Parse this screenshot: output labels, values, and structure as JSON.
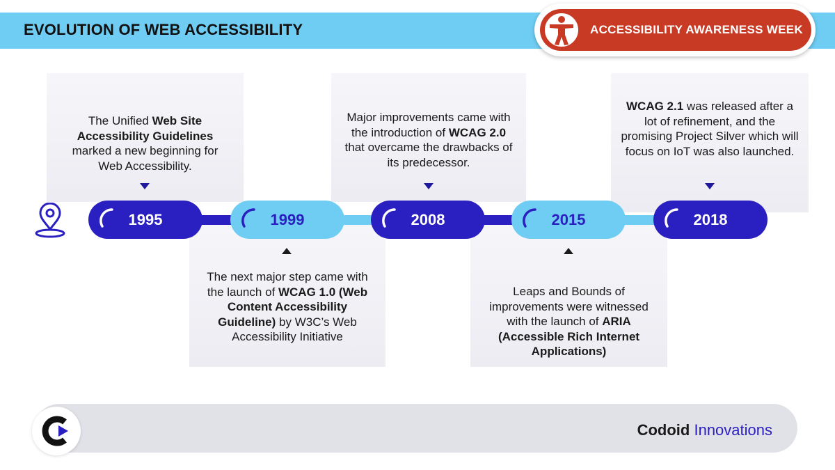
{
  "header": {
    "title": "EVOLUTION OF WEB ACCESSIBILITY",
    "badge_label": "ACCESSIBILITY AWARENESS  WEEK",
    "badge_icon": "accessibility-person-icon"
  },
  "timeline": {
    "start_icon": "location-pin-icon",
    "milestones": [
      {
        "year": "1995",
        "style": "dark",
        "position": "above",
        "parts": [
          [
            "The Unified ",
            false
          ],
          [
            "Web Site Accessibility Guidelines",
            true
          ],
          [
            " marked a new beginning for Web Accessibility.",
            false
          ]
        ]
      },
      {
        "year": "1999",
        "style": "light",
        "position": "below",
        "parts": [
          [
            "The next major step came with the launch of ",
            false
          ],
          [
            "WCAG 1.0 (Web Content Accessibility Guideline)",
            true
          ],
          [
            " by W3C’s Web Accessibility Initiative",
            false
          ]
        ]
      },
      {
        "year": "2008",
        "style": "dark",
        "position": "above",
        "parts": [
          [
            "Major improvements came with the introduction of ",
            false
          ],
          [
            "WCAG 2.0",
            true
          ],
          [
            " that overcame the drawbacks of its predecessor.",
            false
          ]
        ]
      },
      {
        "year": "2015",
        "style": "light",
        "position": "below",
        "parts": [
          [
            "Leaps and Bounds of improvements were witnessed with the launch of ",
            false
          ],
          [
            "ARIA (Accessible Rich Internet Applications)",
            true
          ]
        ]
      },
      {
        "year": "2018",
        "style": "dark",
        "position": "above",
        "parts": [
          [
            "WCAG 2.1",
            true
          ],
          [
            " was released after a lot of refinement, and the promising Project Silver which will focus on IoT was also launched.",
            false
          ]
        ]
      }
    ]
  },
  "footer": {
    "brand_bold": "Codoid",
    "brand_regular": " Innovations",
    "logo_icon": "codoid-logo-icon"
  },
  "colors": {
    "header_bar": "#6fcdf3",
    "badge": "#c83a24",
    "dark_pill": "#2a1fc0",
    "light_pill": "#6fcdf3"
  }
}
